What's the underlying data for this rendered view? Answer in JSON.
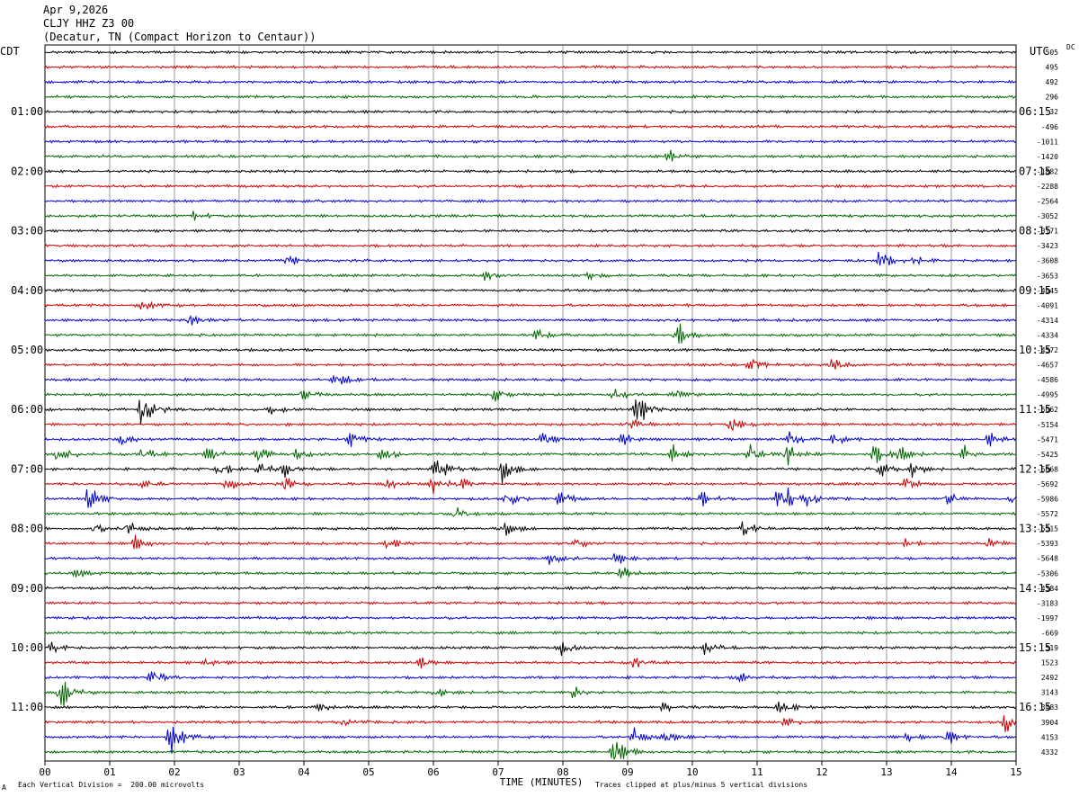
{
  "header": {
    "date": "Apr 9,2026",
    "station": "CLJY HHZ Z3 00",
    "location": "(Decatur, TN (Compact Horizon to Centaur))"
  },
  "corner": {
    "left_tz": "CDT",
    "right_tz": "UTC",
    "dc_label": "DC"
  },
  "footer": {
    "left_mark": "A",
    "scale_note": "Each Vertical Division =  200.00 microvolts",
    "clip_note": "Traces clipped at plus/minus 5 vertical divisions"
  },
  "colors": {
    "trace_cycle": [
      "#000000",
      "#cc0000",
      "#0000cc",
      "#006600"
    ],
    "grid": "#808080"
  },
  "chart_data": {
    "type": "line",
    "title": "",
    "xlabel": "TIME (MINUTES)",
    "x_ticks": [
      "00",
      "01",
      "02",
      "03",
      "04",
      "05",
      "06",
      "07",
      "08",
      "09",
      "10",
      "11",
      "12",
      "13",
      "14",
      "15"
    ],
    "xlim": [
      0,
      15
    ],
    "minutes_per_line": 15,
    "trace_count": 48,
    "left_time_labels": [
      "01:00",
      "02:00",
      "03:00",
      "04:00",
      "05:00",
      "06:00",
      "07:00",
      "08:00",
      "09:00",
      "10:00",
      "11:00"
    ],
    "right_time_labels": [
      "06:15",
      "07:15",
      "08:15",
      "09:15",
      "10:15",
      "11:15",
      "12:15",
      "13:15",
      "14:15",
      "15:15",
      "16:15"
    ],
    "dc_offsets": [
      "505",
      "495",
      "492",
      "296",
      "-32",
      "-496",
      "-1011",
      "-1420",
      "-1882",
      "-2288",
      "-2564",
      "-3052",
      "-3171",
      "-3423",
      "-3608",
      "-3653",
      "-4045",
      "-4091",
      "-4314",
      "-4334",
      "-4572",
      "-4657",
      "-4586",
      "-4995",
      "-5062",
      "-5154",
      "-5471",
      "-5425",
      "-5668",
      "-5692",
      "-5986",
      "-5572",
      "-5515",
      "-5393",
      "-5648",
      "-5306",
      "-4384",
      "-3183",
      "-1997",
      "-669",
      "519",
      "1523",
      "2492",
      "3143",
      "3483",
      "3904",
      "4153",
      "4332"
    ],
    "events": [
      {
        "line": 7,
        "minute": 9.65,
        "amp": 0.5
      },
      {
        "line": 11,
        "minute": 2.25,
        "amp": 0.5
      },
      {
        "line": 14,
        "minute": 3.75,
        "amp": 0.4
      },
      {
        "line": 14,
        "minute": 12.9,
        "amp": 0.9
      },
      {
        "line": 14,
        "minute": 13.4,
        "amp": 0.4
      },
      {
        "line": 15,
        "minute": 6.75,
        "amp": 0.5
      },
      {
        "line": 15,
        "minute": 8.4,
        "amp": 0.4
      },
      {
        "line": 17,
        "minute": 1.5,
        "amp": 0.6
      },
      {
        "line": 18,
        "minute": 2.25,
        "amp": 0.5
      },
      {
        "line": 19,
        "minute": 7.6,
        "amp": 0.5
      },
      {
        "line": 19,
        "minute": 9.75,
        "amp": 1.2
      },
      {
        "line": 21,
        "minute": 10.9,
        "amp": 0.6
      },
      {
        "line": 21,
        "minute": 12.15,
        "amp": 0.5
      },
      {
        "line": 22,
        "minute": 4.5,
        "amp": 0.7
      },
      {
        "line": 23,
        "minute": 4.0,
        "amp": 0.5
      },
      {
        "line": 23,
        "minute": 6.95,
        "amp": 0.6
      },
      {
        "line": 23,
        "minute": 8.8,
        "amp": 0.4
      },
      {
        "line": 23,
        "minute": 9.75,
        "amp": 0.5
      },
      {
        "line": 24,
        "minute": 1.5,
        "amp": 1.6
      },
      {
        "line": 24,
        "minute": 3.5,
        "amp": 0.4
      },
      {
        "line": 24,
        "minute": 9.15,
        "amp": 1.8
      },
      {
        "line": 25,
        "minute": 9.05,
        "amp": 0.5
      },
      {
        "line": 25,
        "minute": 10.6,
        "amp": 0.7
      },
      {
        "line": 26,
        "minute": 1.2,
        "amp": 0.5
      },
      {
        "line": 26,
        "minute": 4.7,
        "amp": 0.6
      },
      {
        "line": 26,
        "minute": 7.7,
        "amp": 0.6
      },
      {
        "line": 26,
        "minute": 8.9,
        "amp": 0.6
      },
      {
        "line": 26,
        "minute": 11.5,
        "amp": 0.6
      },
      {
        "line": 26,
        "minute": 12.2,
        "amp": 0.6
      },
      {
        "line": 26,
        "minute": 14.6,
        "amp": 0.6
      },
      {
        "line": 27,
        "minute": 0.2,
        "amp": 0.8
      },
      {
        "line": 27,
        "minute": 1.5,
        "amp": 0.7
      },
      {
        "line": 27,
        "minute": 2.5,
        "amp": 0.7
      },
      {
        "line": 27,
        "minute": 3.3,
        "amp": 0.6
      },
      {
        "line": 27,
        "minute": 3.9,
        "amp": 0.5
      },
      {
        "line": 27,
        "minute": 5.2,
        "amp": 0.8
      },
      {
        "line": 27,
        "minute": 9.7,
        "amp": 0.7
      },
      {
        "line": 27,
        "minute": 10.9,
        "amp": 0.8
      },
      {
        "line": 27,
        "minute": 11.45,
        "amp": 1.0
      },
      {
        "line": 27,
        "minute": 12.8,
        "amp": 0.8
      },
      {
        "line": 27,
        "minute": 13.2,
        "amp": 0.8
      },
      {
        "line": 27,
        "minute": 14.2,
        "amp": 0.6
      },
      {
        "line": 28,
        "minute": 2.7,
        "amp": 0.6
      },
      {
        "line": 28,
        "minute": 3.3,
        "amp": 0.6
      },
      {
        "line": 28,
        "minute": 3.7,
        "amp": 0.6
      },
      {
        "line": 28,
        "minute": 6.05,
        "amp": 1.1
      },
      {
        "line": 28,
        "minute": 7.05,
        "amp": 1.5
      },
      {
        "line": 28,
        "minute": 12.9,
        "amp": 0.6
      },
      {
        "line": 28,
        "minute": 13.4,
        "amp": 0.7
      },
      {
        "line": 29,
        "minute": 1.5,
        "amp": 0.4
      },
      {
        "line": 29,
        "minute": 2.8,
        "amp": 0.6
      },
      {
        "line": 29,
        "minute": 3.7,
        "amp": 0.6
      },
      {
        "line": 29,
        "minute": 5.3,
        "amp": 0.4
      },
      {
        "line": 29,
        "minute": 5.95,
        "amp": 1.1
      },
      {
        "line": 29,
        "minute": 6.4,
        "amp": 0.5
      },
      {
        "line": 29,
        "minute": 13.3,
        "amp": 0.5
      },
      {
        "line": 30,
        "minute": 0.65,
        "amp": 1.4
      },
      {
        "line": 30,
        "minute": 7.15,
        "amp": 0.6
      },
      {
        "line": 30,
        "minute": 7.95,
        "amp": 0.6
      },
      {
        "line": 30,
        "minute": 10.15,
        "amp": 0.6
      },
      {
        "line": 30,
        "minute": 11.35,
        "amp": 2.0
      },
      {
        "line": 30,
        "minute": 11.8,
        "amp": 0.6
      },
      {
        "line": 30,
        "minute": 13.95,
        "amp": 0.6
      },
      {
        "line": 30,
        "minute": 14.95,
        "amp": 0.6
      },
      {
        "line": 31,
        "minute": 6.35,
        "amp": 0.5
      },
      {
        "line": 32,
        "minute": 0.75,
        "amp": 0.4
      },
      {
        "line": 32,
        "minute": 1.25,
        "amp": 0.8
      },
      {
        "line": 32,
        "minute": 7.1,
        "amp": 0.6
      },
      {
        "line": 32,
        "minute": 10.8,
        "amp": 0.7
      },
      {
        "line": 33,
        "minute": 1.4,
        "amp": 0.6
      },
      {
        "line": 33,
        "minute": 5.3,
        "amp": 0.4
      },
      {
        "line": 33,
        "minute": 8.2,
        "amp": 0.4
      },
      {
        "line": 33,
        "minute": 13.3,
        "amp": 0.4
      },
      {
        "line": 33,
        "minute": 14.55,
        "amp": 0.6
      },
      {
        "line": 34,
        "minute": 7.8,
        "amp": 0.5
      },
      {
        "line": 34,
        "minute": 8.8,
        "amp": 0.6
      },
      {
        "line": 35,
        "minute": 0.5,
        "amp": 0.4
      },
      {
        "line": 35,
        "minute": 8.9,
        "amp": 0.5
      },
      {
        "line": 40,
        "minute": 0.1,
        "amp": 0.5
      },
      {
        "line": 40,
        "minute": 7.95,
        "amp": 0.7
      },
      {
        "line": 40,
        "minute": 10.2,
        "amp": 0.5
      },
      {
        "line": 41,
        "minute": 2.5,
        "amp": 0.4
      },
      {
        "line": 41,
        "minute": 5.8,
        "amp": 0.4
      },
      {
        "line": 41,
        "minute": 9.1,
        "amp": 0.5
      },
      {
        "line": 42,
        "minute": 1.65,
        "amp": 0.6
      },
      {
        "line": 42,
        "minute": 10.7,
        "amp": 0.5
      },
      {
        "line": 43,
        "minute": 0.25,
        "amp": 1.5
      },
      {
        "line": 43,
        "minute": 6.05,
        "amp": 0.5
      },
      {
        "line": 43,
        "minute": 8.15,
        "amp": 0.5
      },
      {
        "line": 44,
        "minute": 4.2,
        "amp": 0.4
      },
      {
        "line": 44,
        "minute": 9.55,
        "amp": 0.4
      },
      {
        "line": 44,
        "minute": 11.35,
        "amp": 0.6
      },
      {
        "line": 45,
        "minute": 4.6,
        "amp": 0.4
      },
      {
        "line": 45,
        "minute": 11.45,
        "amp": 0.5
      },
      {
        "line": 45,
        "minute": 14.85,
        "amp": 0.8
      },
      {
        "line": 46,
        "minute": 1.95,
        "amp": 1.7
      },
      {
        "line": 46,
        "minute": 9.1,
        "amp": 0.8
      },
      {
        "line": 46,
        "minute": 9.6,
        "amp": 0.5
      },
      {
        "line": 46,
        "minute": 13.3,
        "amp": 0.5
      },
      {
        "line": 46,
        "minute": 13.95,
        "amp": 0.6
      },
      {
        "line": 47,
        "minute": 8.8,
        "amp": 1.3
      }
    ]
  }
}
